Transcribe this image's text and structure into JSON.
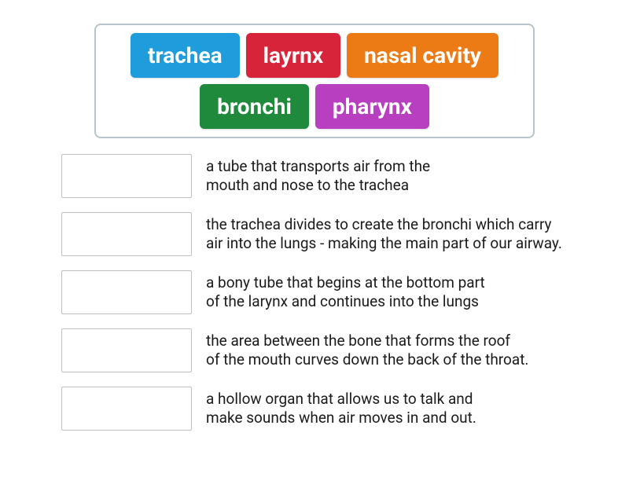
{
  "wordBank": {
    "border_color": "#b8c4cc",
    "border_radius": 8,
    "chips": [
      {
        "label": "trachea",
        "bg": "#1e9cdb"
      },
      {
        "label": "layrnx",
        "bg": "#d8243b"
      },
      {
        "label": "nasal cavity",
        "bg": "#ec7b16"
      },
      {
        "label": "bronchi",
        "bg": "#1f8a3b"
      },
      {
        "label": "pharynx",
        "bg": "#b83fc0"
      }
    ],
    "chip_font_size": 28,
    "chip_font_weight": 700,
    "chip_text_color": "#ffffff"
  },
  "definitions": [
    {
      "text": "a tube that transports air from the\nmouth and nose to the trachea"
    },
    {
      "text": "the trachea divides to create the bronchi which carry\nair into the lungs - making the main part of our airway."
    },
    {
      "text": "a bony tube that begins at the bottom part\nof the larynx and continues into the lungs"
    },
    {
      "text": "the area between the bone that forms the roof\nof the mouth curves down the back of the throat."
    },
    {
      "text": "a hollow organ that allows us to talk and\nmake sounds when air moves in and out."
    }
  ],
  "slot": {
    "width": 166,
    "height": 56,
    "border_color": "#bfbfbf"
  },
  "def_style": {
    "font_size": 19,
    "color": "#1a1a1a"
  }
}
